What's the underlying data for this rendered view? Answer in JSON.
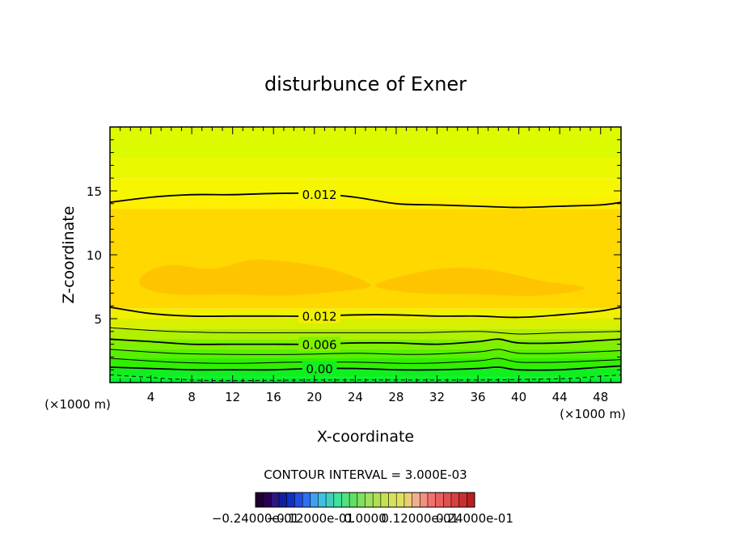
{
  "chart_data": {
    "type": "contour",
    "title": "disturbunce of Exner",
    "xlabel": "X-coordinate",
    "ylabel": "Z-coordinate",
    "xunit_left": "(×1000 m)",
    "xunit_right": "(×1000 m)",
    "xlim": [
      0,
      50
    ],
    "ylim": [
      0,
      20
    ],
    "xticks": [
      4,
      8,
      12,
      16,
      20,
      24,
      28,
      32,
      36,
      40,
      44,
      48
    ],
    "yticks": [
      5,
      10,
      15
    ],
    "contour_interval_text": "CONTOUR INTERVAL = 3.000E-03",
    "contour_interval": 0.003,
    "fill_bands": [
      {
        "z0": 0.0,
        "z1": 0.4,
        "color": "#00f030"
      },
      {
        "z0": 0.4,
        "z1": 1.1,
        "color": "#10f020"
      },
      {
        "z0": 1.1,
        "z1": 1.9,
        "color": "#30f000"
      },
      {
        "z0": 1.9,
        "z1": 2.6,
        "color": "#58f000"
      },
      {
        "z0": 2.6,
        "z1": 3.4,
        "color": "#80f000"
      },
      {
        "z0": 3.4,
        "z1": 4.2,
        "color": "#b0f000"
      },
      {
        "z0": 4.2,
        "z1": 5.0,
        "color": "#d8f000"
      },
      {
        "z0": 5.0,
        "z1": 5.8,
        "color": "#f0f000"
      },
      {
        "z0": 5.8,
        "z1": 13.6,
        "color": "#ffd800"
      },
      {
        "z0": 13.6,
        "z1": 14.4,
        "color": "#ffee00"
      },
      {
        "z0": 14.4,
        "z1": 16.0,
        "color": "#f6f600"
      },
      {
        "z0": 16.0,
        "z1": 17.6,
        "color": "#eaf800"
      },
      {
        "z0": 17.6,
        "z1": 20.0,
        "color": "#dcfa00"
      }
    ],
    "max_region_color": "#ffc400",
    "max_regions": [
      {
        "points": [
          [
            3.0,
            7.6
          ],
          [
            3.6,
            8.6
          ],
          [
            6.0,
            9.2
          ],
          [
            10.0,
            8.9
          ],
          [
            14.0,
            9.6
          ],
          [
            18.0,
            9.4
          ],
          [
            22.0,
            8.8
          ],
          [
            25.5,
            7.6
          ],
          [
            22.0,
            7.1
          ],
          [
            17.0,
            6.8
          ],
          [
            12.0,
            6.9
          ],
          [
            6.0,
            6.9
          ]
        ]
      },
      {
        "points": [
          [
            26.0,
            7.6
          ],
          [
            30.0,
            8.6
          ],
          [
            34.0,
            9.0
          ],
          [
            38.0,
            8.7
          ],
          [
            42.0,
            8.0
          ],
          [
            46.5,
            7.4
          ],
          [
            42.0,
            6.8
          ],
          [
            36.0,
            6.9
          ],
          [
            30.0,
            7.0
          ]
        ]
      }
    ],
    "contours": [
      {
        "value": "0.012",
        "style": "solid",
        "points": [
          [
            0,
            14.1
          ],
          [
            4,
            14.5
          ],
          [
            8,
            14.7
          ],
          [
            12,
            14.7
          ],
          [
            16,
            14.8
          ],
          [
            20,
            14.8
          ],
          [
            24,
            14.5
          ],
          [
            28,
            14.0
          ],
          [
            32,
            13.9
          ],
          [
            36,
            13.8
          ],
          [
            40,
            13.7
          ],
          [
            44,
            13.8
          ],
          [
            48,
            13.9
          ],
          [
            50,
            14.1
          ]
        ]
      },
      {
        "value": "0.012",
        "style": "solid",
        "points": [
          [
            0,
            5.9
          ],
          [
            4,
            5.4
          ],
          [
            8,
            5.2
          ],
          [
            12,
            5.2
          ],
          [
            16,
            5.2
          ],
          [
            20,
            5.2
          ],
          [
            24,
            5.3
          ],
          [
            28,
            5.3
          ],
          [
            32,
            5.2
          ],
          [
            36,
            5.2
          ],
          [
            40,
            5.1
          ],
          [
            44,
            5.3
          ],
          [
            48,
            5.6
          ],
          [
            50,
            5.9
          ]
        ]
      },
      {
        "value": "",
        "style": "solid",
        "points": [
          [
            0,
            4.3
          ],
          [
            6,
            4.0
          ],
          [
            12,
            3.9
          ],
          [
            18,
            3.9
          ],
          [
            24,
            3.9
          ],
          [
            30,
            3.9
          ],
          [
            36,
            4.0
          ],
          [
            40,
            3.8
          ],
          [
            44,
            3.9
          ],
          [
            50,
            4.0
          ]
        ]
      },
      {
        "value": "0.006",
        "style": "solid",
        "points": [
          [
            0,
            3.4
          ],
          [
            4,
            3.2
          ],
          [
            8,
            3.0
          ],
          [
            12,
            3.0
          ],
          [
            16,
            3.0
          ],
          [
            20,
            3.0
          ],
          [
            24,
            3.1
          ],
          [
            28,
            3.1
          ],
          [
            32,
            3.0
          ],
          [
            36,
            3.2
          ],
          [
            38,
            3.4
          ],
          [
            40,
            3.1
          ],
          [
            44,
            3.1
          ],
          [
            48,
            3.3
          ],
          [
            50,
            3.4
          ]
        ]
      },
      {
        "value": "",
        "style": "solid",
        "points": [
          [
            0,
            2.6
          ],
          [
            6,
            2.3
          ],
          [
            12,
            2.2
          ],
          [
            18,
            2.2
          ],
          [
            24,
            2.3
          ],
          [
            30,
            2.2
          ],
          [
            36,
            2.4
          ],
          [
            38,
            2.6
          ],
          [
            40,
            2.3
          ],
          [
            44,
            2.3
          ],
          [
            50,
            2.5
          ]
        ]
      },
      {
        "value": "",
        "style": "solid",
        "points": [
          [
            0,
            1.9
          ],
          [
            6,
            1.6
          ],
          [
            12,
            1.5
          ],
          [
            18,
            1.6
          ],
          [
            24,
            1.6
          ],
          [
            30,
            1.5
          ],
          [
            36,
            1.7
          ],
          [
            38,
            1.9
          ],
          [
            40,
            1.6
          ],
          [
            44,
            1.6
          ],
          [
            50,
            1.8
          ]
        ]
      },
      {
        "value": "0.00",
        "style": "solid",
        "points": [
          [
            0,
            1.2
          ],
          [
            4,
            1.1
          ],
          [
            8,
            1.0
          ],
          [
            12,
            1.0
          ],
          [
            16,
            1.0
          ],
          [
            20,
            1.1
          ],
          [
            24,
            1.1
          ],
          [
            28,
            1.0
          ],
          [
            32,
            1.0
          ],
          [
            36,
            1.1
          ],
          [
            38,
            1.2
          ],
          [
            40,
            1.0
          ],
          [
            44,
            1.0
          ],
          [
            48,
            1.2
          ],
          [
            50,
            1.3
          ]
        ]
      },
      {
        "value": "",
        "style": "dashed",
        "points": [
          [
            0,
            0.6
          ],
          [
            4,
            0.4
          ],
          [
            8,
            0.2
          ],
          [
            12,
            0.15
          ],
          [
            20,
            0.2
          ],
          [
            28,
            0.2
          ],
          [
            36,
            0.2
          ],
          [
            44,
            0.3
          ],
          [
            48,
            0.5
          ],
          [
            50,
            0.6
          ]
        ]
      }
    ],
    "colorbar_colors": [
      "#200030",
      "#2a0050",
      "#2a1880",
      "#1020a0",
      "#1030c0",
      "#2050e0",
      "#3070f0",
      "#40a0f0",
      "#40c0e0",
      "#40d0c0",
      "#40e0a0",
      "#50e080",
      "#60e060",
      "#80e060",
      "#a0e060",
      "#b0e050",
      "#c8e050",
      "#d8e060",
      "#e0e060",
      "#e8d070",
      "#f0b090",
      "#f09080",
      "#f07070",
      "#e86060",
      "#e05050",
      "#d84040",
      "#c83030",
      "#b82020"
    ],
    "colorbar_labels": [
      "−0.24000e-01",
      "−0.12000e-01",
      "0.0000",
      "0.12000e-01",
      "0.24000e-01"
    ]
  }
}
